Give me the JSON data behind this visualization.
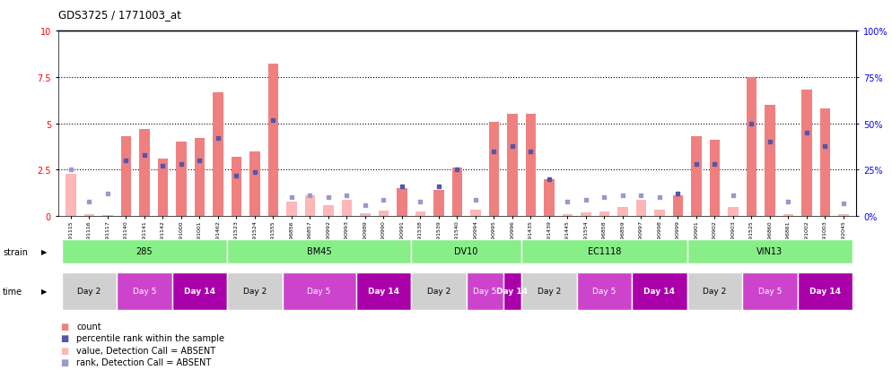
{
  "title": "GDS3725 / 1771003_at",
  "samples": [
    "GSM291115",
    "GSM291116",
    "GSM291117",
    "GSM291140",
    "GSM291141",
    "GSM291142",
    "GSM291000",
    "GSM291001",
    "GSM291462",
    "GSM291523",
    "GSM291524",
    "GSM291555",
    "GSM296856",
    "GSM296857",
    "GSM290992",
    "GSM290993",
    "GSM290989",
    "GSM290990",
    "GSM290991",
    "GSM291538",
    "GSM291539",
    "GSM291540",
    "GSM290994",
    "GSM290995",
    "GSM290996",
    "GSM291435",
    "GSM291439",
    "GSM291445",
    "GSM291554",
    "GSM296858",
    "GSM296859",
    "GSM290997",
    "GSM290998",
    "GSM290999",
    "GSM290901",
    "GSM290902",
    "GSM290903",
    "GSM291525",
    "GSM296860",
    "GSM296861",
    "GSM291002",
    "GSM291003",
    "GSM292045"
  ],
  "count_values": [
    2.3,
    0.1,
    0.05,
    4.3,
    4.7,
    3.1,
    4.0,
    4.2,
    6.7,
    3.2,
    3.5,
    8.2,
    0.8,
    1.1,
    0.6,
    0.9,
    0.15,
    0.3,
    1.5,
    0.25,
    1.4,
    2.6,
    0.35,
    5.1,
    5.5,
    5.5,
    2.0,
    0.1,
    0.2,
    0.25,
    0.5,
    0.9,
    0.35,
    1.1,
    4.3,
    4.1,
    0.5,
    7.5,
    6.0,
    0.1,
    6.8,
    5.8,
    0.1
  ],
  "percentile_values": [
    25,
    8,
    12,
    30,
    33,
    27,
    28,
    30,
    42,
    22,
    24,
    52,
    10,
    11,
    10,
    11,
    6,
    9,
    16,
    8,
    16,
    25,
    9,
    35,
    38,
    35,
    20,
    8,
    9,
    10,
    11,
    11,
    10,
    12,
    28,
    28,
    11,
    50,
    40,
    8,
    45,
    38,
    7
  ],
  "absent_count": [
    true,
    true,
    true,
    false,
    false,
    false,
    false,
    false,
    false,
    false,
    false,
    false,
    true,
    true,
    true,
    true,
    true,
    true,
    false,
    true,
    false,
    false,
    true,
    false,
    false,
    false,
    false,
    true,
    true,
    true,
    true,
    true,
    true,
    false,
    false,
    false,
    true,
    false,
    false,
    true,
    false,
    false,
    true
  ],
  "absent_rank": [
    true,
    true,
    true,
    false,
    false,
    false,
    false,
    false,
    false,
    false,
    false,
    false,
    true,
    true,
    true,
    true,
    true,
    true,
    false,
    true,
    false,
    false,
    true,
    false,
    false,
    false,
    false,
    true,
    true,
    true,
    true,
    true,
    true,
    false,
    false,
    false,
    true,
    false,
    false,
    true,
    false,
    false,
    true
  ],
  "strains": [
    {
      "label": "285",
      "start": 0,
      "end": 8
    },
    {
      "label": "BM45",
      "start": 9,
      "end": 18
    },
    {
      "label": "DV10",
      "start": 19,
      "end": 24
    },
    {
      "label": "EC1118",
      "start": 25,
      "end": 33
    },
    {
      "label": "VIN13",
      "start": 34,
      "end": 42
    }
  ],
  "times": [
    {
      "label": "Day 2",
      "start": 0,
      "end": 2
    },
    {
      "label": "Day 5",
      "start": 3,
      "end": 5
    },
    {
      "label": "Day 14",
      "start": 6,
      "end": 8
    },
    {
      "label": "Day 2",
      "start": 9,
      "end": 11
    },
    {
      "label": "Day 5",
      "start": 12,
      "end": 15
    },
    {
      "label": "Day 14",
      "start": 16,
      "end": 18
    },
    {
      "label": "Day 2",
      "start": 19,
      "end": 21
    },
    {
      "label": "Day 5",
      "start": 22,
      "end": 23
    },
    {
      "label": "Day 14",
      "start": 24,
      "end": 24
    },
    {
      "label": "Day 2",
      "start": 25,
      "end": 27
    },
    {
      "label": "Day 5",
      "start": 28,
      "end": 30
    },
    {
      "label": "Day 14",
      "start": 31,
      "end": 33
    },
    {
      "label": "Day 2",
      "start": 34,
      "end": 36
    },
    {
      "label": "Day 5",
      "start": 37,
      "end": 39
    },
    {
      "label": "Day 14",
      "start": 40,
      "end": 42
    }
  ],
  "ylim_left": [
    0,
    10
  ],
  "ylim_right": [
    0,
    100
  ],
  "yticks_left": [
    0,
    2.5,
    5.0,
    7.5,
    10
  ],
  "yticks_right": [
    0,
    25,
    50,
    75,
    100
  ],
  "hlines": [
    2.5,
    5.0,
    7.5
  ],
  "bar_width": 0.55,
  "count_color": "#f08080",
  "count_absent_color": "#ffb6b6",
  "rank_color": "#5555aa",
  "rank_absent_color": "#9999cc",
  "strain_color": "#88ee88",
  "time_color_day2": "#d0d0d0",
  "time_color_day5": "#cc44cc",
  "time_color_day14": "#aa00aa"
}
